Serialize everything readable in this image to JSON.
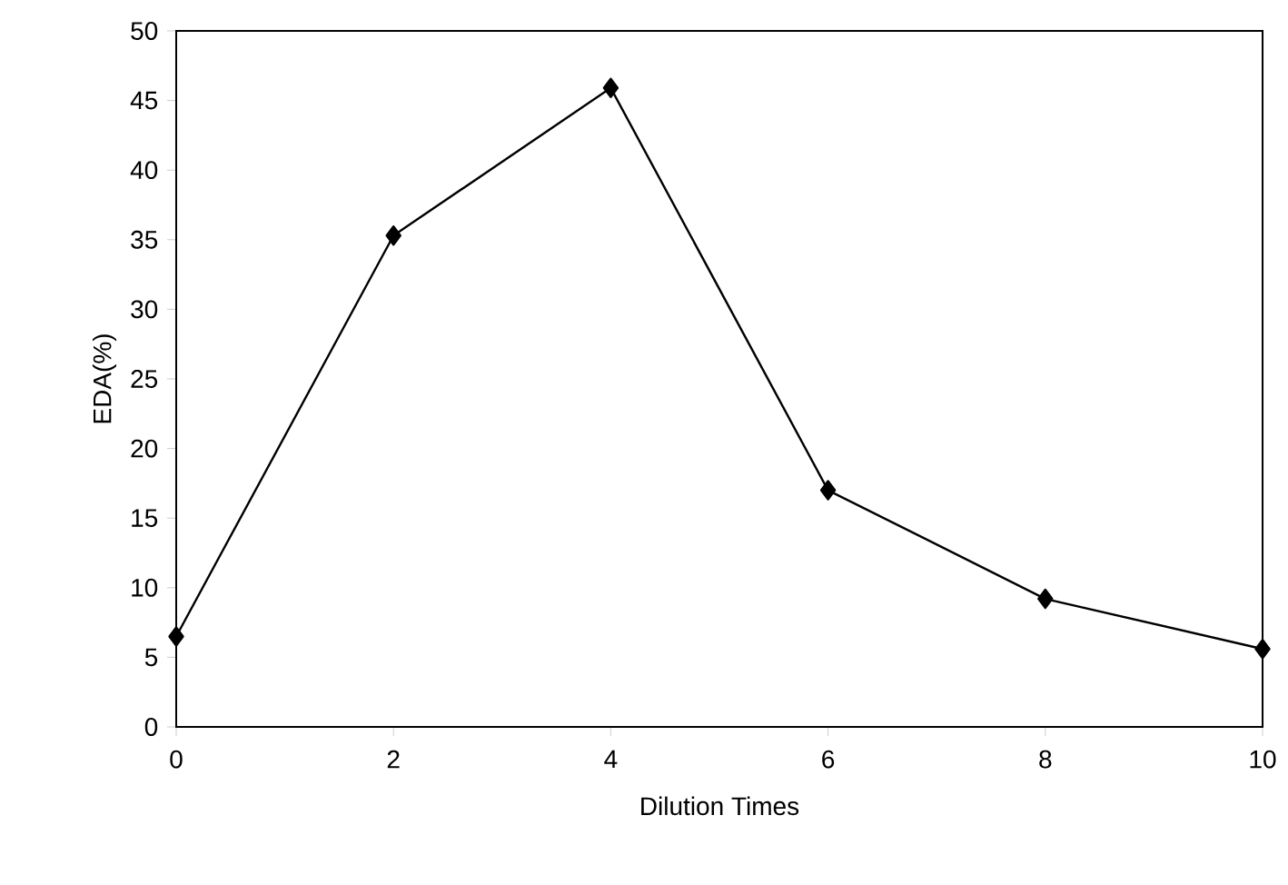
{
  "chart_data": {
    "type": "line",
    "xlabel": "Dilution Times",
    "ylabel": "EDA(%)",
    "x": [
      0,
      2,
      4,
      6,
      8,
      10
    ],
    "values": [
      6.5,
      35.3,
      45.9,
      17,
      9.2,
      5.6
    ],
    "color": "#000000",
    "marker": "diamond",
    "line_style": "solid",
    "xlim": [
      0,
      10
    ],
    "ylim": [
      0,
      50
    ],
    "xticks": [
      0,
      2,
      4,
      6,
      8,
      10
    ],
    "yticks": [
      0,
      5,
      10,
      15,
      20,
      25,
      30,
      35,
      40,
      45,
      50
    ]
  }
}
